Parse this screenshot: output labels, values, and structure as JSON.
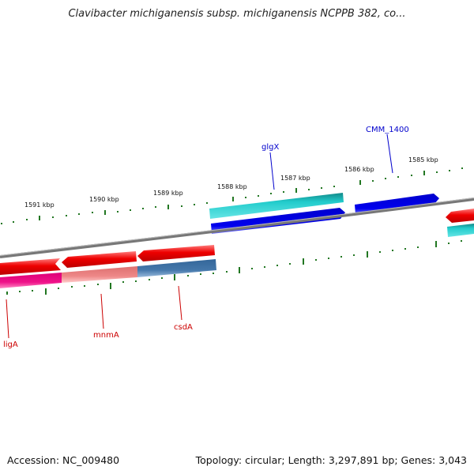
{
  "title": "Clavibacter michiganensis subsp. michiganensis NCPPB 382, co...",
  "accession_text": "Accession: NC_009480",
  "summary_text": "Topology: circular; Length: 3,297,891 bp; Genes: 3,043",
  "ticks": [
    "1591 kbp",
    "1590 kbp",
    "1589 kbp",
    "1588 kbp",
    "1587 kbp",
    "1586 kbp",
    "1585 kbp"
  ],
  "gene_labels": {
    "glgX": "glgX",
    "cmm1400": "CMM_1400",
    "ligA": "ligA",
    "mnmA": "mnmA",
    "csdA": "csdA"
  },
  "colors": {
    "forward_red": "#ee1111",
    "cyan": "#22cccc",
    "blue": "#0000ee",
    "magenta": "#ee1188",
    "pink": "#ee8888",
    "steel": "#4477aa",
    "tick_green": "#227722",
    "backbone_grey": "#777777"
  }
}
